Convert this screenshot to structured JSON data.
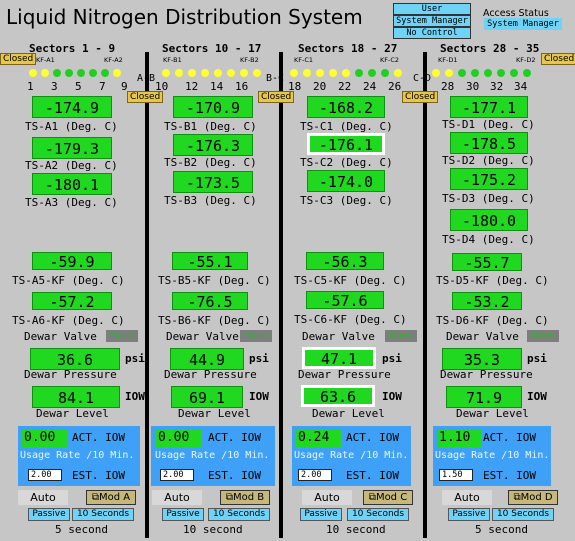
{
  "title": "Liquid Nitrogen Distribution System",
  "access": {
    "options": [
      "User",
      "System Manager",
      "No Control"
    ],
    "status_label": "Access Status",
    "status_value": "System Manager"
  },
  "colors": {
    "panel_bg": "#c6c6c6",
    "value_green": "#1fd81f",
    "valve_open": "#e8c64a",
    "valve_open_led": "#ffff30",
    "valve_closed_led": "#20d020",
    "control_blue": "#3ea0f7",
    "access_cyan": "#6fd3f7"
  },
  "sectors": [
    {
      "header": "Sectors 1 - 9",
      "closed_left": "Closed",
      "kf_left": "KF-A1",
      "kf_right": "KF-A2",
      "numbers": [
        "1",
        "3",
        "5",
        "7",
        "9"
      ],
      "temps": [
        {
          "value": "-174.9",
          "label": "TS-A1 (Deg. C)"
        },
        {
          "value": "-179.3",
          "label": "TS-A2 (Deg. C)"
        },
        {
          "value": "-180.1",
          "label": "TS-A3 (Deg. C)"
        }
      ],
      "kf_temps": [
        {
          "value": "-59.9",
          "label": "TS-A5-KF (Deg. C)"
        },
        {
          "value": "-57.2",
          "label": "TS-A6-KF (Deg. C)"
        }
      ],
      "valve_label": "Dewar Valve",
      "valve_state": "Open",
      "pressure": {
        "value": "36.6",
        "unit": "psi",
        "label": "Dewar Pressure"
      },
      "level": {
        "value": "84.1",
        "unit": "IOW",
        "label": "Dewar Level"
      },
      "control": {
        "act": "0.00",
        "act_label": "ACT. IOW",
        "rate_label": "Usage Rate /10 Min.",
        "est": "2.00",
        "est_label": "EST. IOW"
      },
      "auto": "Auto",
      "mod": "Mod A",
      "passive": "Passive",
      "seconds_btn": "10 Seconds",
      "period": "5 second"
    },
    {
      "header": "Sectors 10 - 17",
      "closed_left": "",
      "kf_left": "KF-B1",
      "kf_right": "KF-B2",
      "numbers": [
        "10",
        "12",
        "14",
        "16"
      ],
      "temps": [
        {
          "value": "-170.9",
          "label": "TS-B1 (Deg. C)"
        },
        {
          "value": "-176.3",
          "label": "TS-B2 (Deg. C)"
        },
        {
          "value": "-173.5",
          "label": "TS-B3 (Deg. C)"
        }
      ],
      "kf_temps": [
        {
          "value": "-55.1",
          "label": "TS-B5-KF (Deg. C)"
        },
        {
          "value": "-76.5",
          "label": "TS-B6-KF (Deg. C)"
        }
      ],
      "valve_label": "Dewar Valve",
      "valve_state": "Open",
      "pressure": {
        "value": "44.9",
        "unit": "psi",
        "label": "Dewar Pressure"
      },
      "level": {
        "value": "69.1",
        "unit": "IOW",
        "label": "Dewar Level"
      },
      "control": {
        "act": "0.00",
        "act_label": "ACT. IOW",
        "rate_label": "Usage Rate /10 Min.",
        "est": "2.00",
        "est_label": "EST. IOW"
      },
      "auto": "Auto",
      "mod": "Mod B",
      "passive": "Passive",
      "seconds_btn": "10 Seconds",
      "period": "10 second"
    },
    {
      "header": "Sectors 18 - 27",
      "closed_left": "",
      "kf_left": "KF-C1",
      "kf_right": "KF-C2",
      "numbers": [
        "18",
        "20",
        "22",
        "24",
        "26"
      ],
      "temps": [
        {
          "value": "-168.2",
          "label": "TS-C1 (Deg. C)"
        },
        {
          "value": "-176.1",
          "label": "TS-C2 (Deg. C)"
        },
        {
          "value": "-174.0",
          "label": "TS-C3 (Deg. C)"
        }
      ],
      "kf_temps": [
        {
          "value": "-56.3",
          "label": "TS-C5-KF (Deg. C)"
        },
        {
          "value": "-57.6",
          "label": "TS-C6-KF (Deg. C)"
        }
      ],
      "valve_label": "Dewar Valve",
      "valve_state": "Open",
      "pressure": {
        "value": "47.1",
        "unit": "psi",
        "label": "Dewar Pressure"
      },
      "level": {
        "value": "63.6",
        "unit": "IOW",
        "label": "Dewar Level"
      },
      "control": {
        "act": "0.24",
        "act_label": "ACT. IOW",
        "rate_label": "Usage Rate /10 Min.",
        "est": "2.00",
        "est_label": "EST. IOW"
      },
      "auto": "Auto",
      "mod": "Mod C",
      "passive": "Passive",
      "seconds_btn": "10 Seconds",
      "period": "10 second"
    },
    {
      "header": "Sectors 28 - 35",
      "closed_left": "",
      "closed_right": "Closed",
      "kf_left": "KF-D1",
      "kf_right": "KF-D2",
      "numbers": [
        "28",
        "30",
        "32",
        "34"
      ],
      "temps": [
        {
          "value": "-177.1",
          "label": "TS-D1 (Deg. C)"
        },
        {
          "value": "-178.5",
          "label": "TS-D2 (Deg. C)"
        },
        {
          "value": "-175.2",
          "label": "TS-D3 (Deg. C)"
        },
        {
          "value": "-180.0",
          "label": "TS-D4 (Deg. C)"
        }
      ],
      "kf_temps": [
        {
          "value": "-55.7",
          "label": "TS-D5-KF (Deg. C)"
        },
        {
          "value": "-53.2",
          "label": "TS-D6-KF (Deg. C)"
        }
      ],
      "valve_label": "Dewar Valve",
      "valve_state": "Open",
      "pressure": {
        "value": "35.3",
        "unit": "psi",
        "label": "Dewar Pressure"
      },
      "level": {
        "value": "71.9",
        "unit": "IOW",
        "label": "Dewar Level"
      },
      "control": {
        "act": "1.10",
        "act_label": "ACT. IOW",
        "rate_label": "Usage Rate /10 Min.",
        "est": "1.50",
        "est_label": "EST. IOW"
      },
      "auto": "Auto",
      "mod": "Mod D",
      "passive": "Passive",
      "seconds_btn": "10 Seconds",
      "period": "5 second"
    }
  ],
  "crossovers": [
    {
      "label": "A-B",
      "state": "Closed"
    },
    {
      "label": "B-C",
      "state": "Closed"
    },
    {
      "label": "C-D",
      "state": "Closed"
    }
  ]
}
